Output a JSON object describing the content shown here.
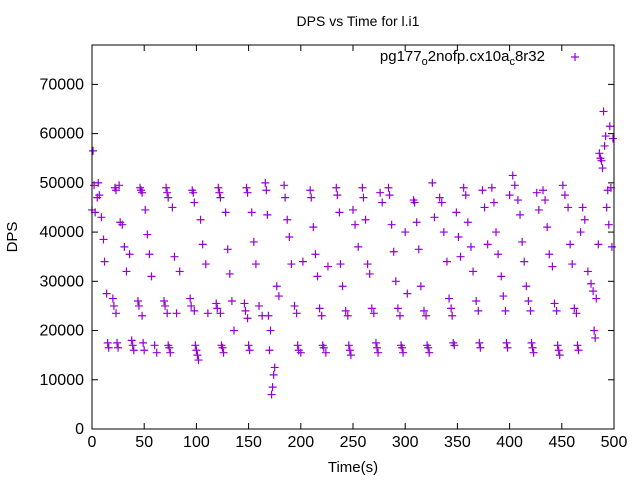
{
  "chart_data": {
    "type": "scatter",
    "title": "DPS vs Time for l.i1",
    "xlabel": "Time(s)",
    "ylabel": "DPS",
    "xlim": [
      0,
      500
    ],
    "ylim": [
      0,
      78000
    ],
    "xticks": [
      0,
      50,
      100,
      150,
      200,
      250,
      300,
      350,
      400,
      450,
      500
    ],
    "yticks": [
      0,
      10000,
      20000,
      30000,
      40000,
      50000,
      60000,
      70000
    ],
    "grid": false,
    "legend": {
      "position": "top-right",
      "label_parts": [
        "pg177",
        "o",
        "2nofp.cx10a",
        "c",
        "8r32"
      ]
    },
    "series": [
      {
        "name": "pg177_o2nofp.cx10a_c8r32",
        "color": "#9400d3",
        "marker": "plus",
        "points": [
          [
            1,
            56500
          ],
          [
            0,
            44500
          ],
          [
            2,
            49500
          ],
          [
            3,
            44000
          ],
          [
            5,
            47000
          ],
          [
            6,
            50000
          ],
          [
            7,
            47500
          ],
          [
            9,
            43000
          ],
          [
            11,
            38500
          ],
          [
            12,
            34000
          ],
          [
            14,
            27500
          ],
          [
            15,
            17500
          ],
          [
            16,
            16500
          ],
          [
            20,
            26500
          ],
          [
            21,
            25000
          ],
          [
            22,
            49000
          ],
          [
            23,
            48500
          ],
          [
            23,
            23500
          ],
          [
            24,
            17500
          ],
          [
            25,
            16500
          ],
          [
            26,
            49500
          ],
          [
            27,
            42000
          ],
          [
            29,
            41500
          ],
          [
            31,
            37000
          ],
          [
            33,
            32000
          ],
          [
            36,
            35500
          ],
          [
            38,
            18000
          ],
          [
            39,
            17000
          ],
          [
            40,
            16000
          ],
          [
            44,
            26000
          ],
          [
            45,
            25000
          ],
          [
            46,
            49000
          ],
          [
            47,
            48500
          ],
          [
            48,
            48000
          ],
          [
            48,
            23000
          ],
          [
            49,
            17500
          ],
          [
            50,
            16000
          ],
          [
            51,
            44500
          ],
          [
            53,
            39500
          ],
          [
            55,
            35500
          ],
          [
            57,
            31000
          ],
          [
            60,
            17000
          ],
          [
            62,
            15500
          ],
          [
            69,
            26000
          ],
          [
            70,
            25000
          ],
          [
            71,
            49000
          ],
          [
            72,
            48000
          ],
          [
            72,
            23500
          ],
          [
            73,
            47000
          ],
          [
            73,
            17000
          ],
          [
            74,
            16500
          ],
          [
            75,
            15500
          ],
          [
            77,
            45000
          ],
          [
            79,
            35000
          ],
          [
            81,
            23500
          ],
          [
            84,
            32000
          ],
          [
            94,
            26500
          ],
          [
            95,
            25000
          ],
          [
            96,
            48500
          ],
          [
            97,
            48000
          ],
          [
            98,
            46000
          ],
          [
            98,
            24000
          ],
          [
            99,
            17000
          ],
          [
            100,
            16000
          ],
          [
            101,
            15000
          ],
          [
            102,
            14000
          ],
          [
            104,
            42500
          ],
          [
            106,
            37500
          ],
          [
            109,
            33500
          ],
          [
            111,
            23500
          ],
          [
            119,
            25500
          ],
          [
            120,
            24500
          ],
          [
            121,
            49000
          ],
          [
            122,
            48000
          ],
          [
            123,
            47000
          ],
          [
            123,
            23500
          ],
          [
            124,
            17000
          ],
          [
            125,
            16500
          ],
          [
            126,
            15500
          ],
          [
            128,
            44000
          ],
          [
            130,
            36500
          ],
          [
            132,
            31500
          ],
          [
            134,
            26000
          ],
          [
            136,
            20000
          ],
          [
            146,
            25500
          ],
          [
            147,
            24000
          ],
          [
            148,
            49000
          ],
          [
            149,
            48000
          ],
          [
            149,
            22500
          ],
          [
            150,
            17000
          ],
          [
            151,
            16000
          ],
          [
            153,
            44000
          ],
          [
            155,
            38000
          ],
          [
            157,
            33500
          ],
          [
            160,
            25000
          ],
          [
            163,
            23000
          ],
          [
            166,
            50000
          ],
          [
            167,
            48500
          ],
          [
            168,
            43500
          ],
          [
            169,
            23000
          ],
          [
            170,
            16000
          ],
          [
            171,
            20000
          ],
          [
            172,
            7000
          ],
          [
            173,
            8500
          ],
          [
            174,
            11000
          ],
          [
            175,
            12500
          ],
          [
            177,
            29000
          ],
          [
            179,
            27000
          ],
          [
            184,
            49500
          ],
          [
            185,
            47000
          ],
          [
            187,
            42500
          ],
          [
            189,
            39000
          ],
          [
            191,
            33500
          ],
          [
            194,
            25000
          ],
          [
            196,
            23500
          ],
          [
            197,
            17000
          ],
          [
            198,
            16000
          ],
          [
            200,
            15500
          ],
          [
            202,
            34000
          ],
          [
            209,
            48500
          ],
          [
            210,
            47000
          ],
          [
            212,
            41000
          ],
          [
            214,
            35500
          ],
          [
            216,
            31000
          ],
          [
            218,
            24500
          ],
          [
            220,
            23000
          ],
          [
            221,
            17000
          ],
          [
            222,
            16500
          ],
          [
            224,
            15500
          ],
          [
            226,
            33000
          ],
          [
            234,
            49000
          ],
          [
            235,
            47500
          ],
          [
            237,
            44000
          ],
          [
            238,
            33500
          ],
          [
            240,
            29000
          ],
          [
            243,
            24000
          ],
          [
            245,
            23000
          ],
          [
            246,
            17000
          ],
          [
            247,
            16000
          ],
          [
            248,
            15000
          ],
          [
            250,
            44500
          ],
          [
            252,
            41500
          ],
          [
            255,
            37000
          ],
          [
            259,
            49000
          ],
          [
            260,
            47000
          ],
          [
            262,
            42500
          ],
          [
            264,
            33500
          ],
          [
            266,
            31500
          ],
          [
            268,
            24500
          ],
          [
            270,
            23500
          ],
          [
            272,
            17500
          ],
          [
            273,
            16500
          ],
          [
            274,
            15500
          ],
          [
            276,
            48000
          ],
          [
            278,
            46000
          ],
          [
            284,
            49000
          ],
          [
            285,
            47500
          ],
          [
            287,
            41500
          ],
          [
            289,
            36000
          ],
          [
            291,
            30000
          ],
          [
            293,
            24500
          ],
          [
            295,
            23000
          ],
          [
            296,
            17000
          ],
          [
            297,
            16500
          ],
          [
            298,
            15500
          ],
          [
            300,
            40000
          ],
          [
            302,
            27500
          ],
          [
            308,
            46500
          ],
          [
            309,
            46000
          ],
          [
            311,
            42000
          ],
          [
            313,
            36500
          ],
          [
            315,
            29000
          ],
          [
            318,
            24000
          ],
          [
            320,
            23000
          ],
          [
            321,
            17000
          ],
          [
            322,
            16500
          ],
          [
            323,
            15500
          ],
          [
            326,
            50000
          ],
          [
            328,
            43000
          ],
          [
            333,
            47000
          ],
          [
            335,
            46000
          ],
          [
            337,
            40000
          ],
          [
            340,
            34000
          ],
          [
            342,
            26500
          ],
          [
            344,
            24500
          ],
          [
            345,
            23000
          ],
          [
            346,
            17500
          ],
          [
            347,
            17000
          ],
          [
            349,
            44000
          ],
          [
            351,
            39000
          ],
          [
            353,
            35000
          ],
          [
            356,
            49000
          ],
          [
            358,
            47500
          ],
          [
            360,
            42000
          ],
          [
            363,
            37000
          ],
          [
            365,
            32000
          ],
          [
            368,
            26000
          ],
          [
            370,
            24000
          ],
          [
            371,
            17500
          ],
          [
            372,
            16500
          ],
          [
            374,
            48500
          ],
          [
            376,
            45000
          ],
          [
            379,
            37500
          ],
          [
            383,
            49000
          ],
          [
            385,
            46000
          ],
          [
            387,
            40000
          ],
          [
            389,
            35500
          ],
          [
            392,
            31000
          ],
          [
            394,
            27000
          ],
          [
            396,
            24000
          ],
          [
            397,
            17500
          ],
          [
            398,
            16500
          ],
          [
            400,
            47500
          ],
          [
            403,
            51500
          ],
          [
            405,
            49500
          ],
          [
            408,
            46500
          ],
          [
            410,
            43500
          ],
          [
            412,
            38000
          ],
          [
            414,
            34000
          ],
          [
            416,
            29000
          ],
          [
            418,
            26000
          ],
          [
            420,
            24000
          ],
          [
            421,
            17500
          ],
          [
            422,
            16500
          ],
          [
            423,
            15500
          ],
          [
            426,
            48000
          ],
          [
            428,
            44500
          ],
          [
            432,
            48500
          ],
          [
            434,
            46500
          ],
          [
            436,
            41000
          ],
          [
            438,
            35500
          ],
          [
            441,
            33000
          ],
          [
            443,
            25500
          ],
          [
            445,
            24000
          ],
          [
            446,
            17000
          ],
          [
            447,
            16000
          ],
          [
            448,
            15000
          ],
          [
            451,
            49500
          ],
          [
            453,
            47500
          ],
          [
            456,
            45000
          ],
          [
            458,
            37500
          ],
          [
            460,
            33500
          ],
          [
            462,
            24500
          ],
          [
            464,
            23500
          ],
          [
            465,
            17000
          ],
          [
            466,
            16000
          ],
          [
            468,
            40000
          ],
          [
            470,
            45000
          ],
          [
            472,
            42500
          ],
          [
            475,
            32000
          ],
          [
            478,
            29500
          ],
          [
            480,
            28000
          ],
          [
            481,
            20000
          ],
          [
            482,
            18500
          ],
          [
            483,
            26500
          ],
          [
            485,
            37500
          ],
          [
            486,
            56000
          ],
          [
            487,
            55000
          ],
          [
            488,
            54500
          ],
          [
            489,
            53000
          ],
          [
            490,
            64500
          ],
          [
            491,
            57500
          ],
          [
            492,
            59500
          ],
          [
            493,
            45000
          ],
          [
            494,
            48500
          ],
          [
            495,
            41500
          ],
          [
            496,
            61500
          ],
          [
            497,
            49000
          ],
          [
            498,
            37000
          ],
          [
            499,
            59000
          ]
        ]
      }
    ]
  }
}
